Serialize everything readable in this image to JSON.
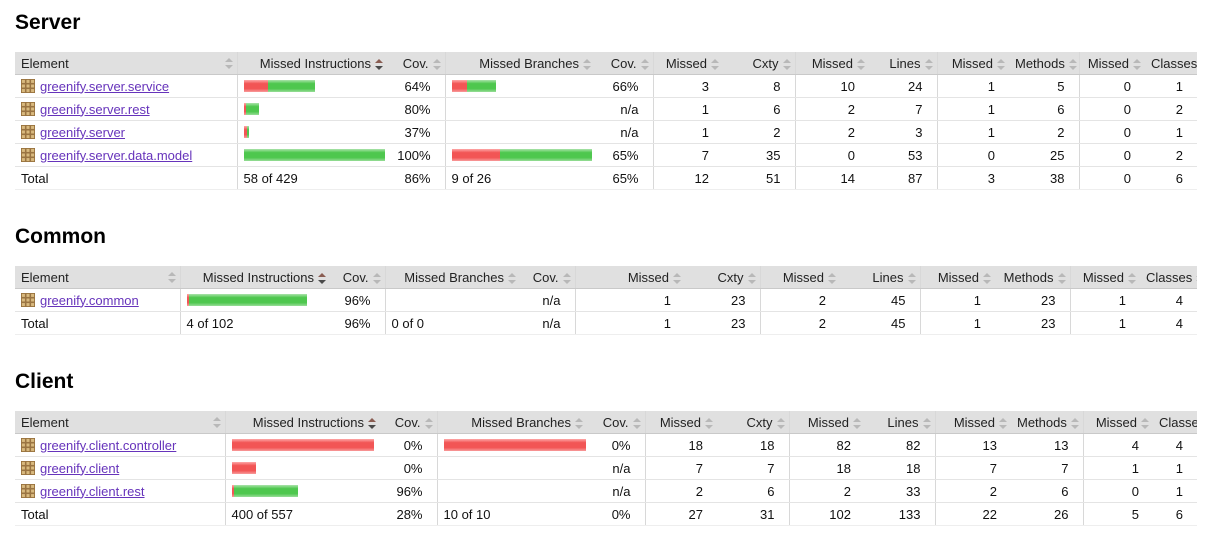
{
  "report": {
    "sort": {
      "column": "Missed Instructions",
      "direction": "desc"
    },
    "colors": {
      "bar_red": "#f25555",
      "bar_green": "#4ec74e",
      "link": "#6633bb",
      "header_bg": "#e0e0e0"
    },
    "icons": {
      "package": "package-grid-icon",
      "sort": "sort-arrows-icon"
    }
  },
  "columns": [
    "Element",
    "Missed Instructions",
    "Cov.",
    "Missed Branches",
    "Cov.",
    "Missed",
    "Cxty",
    "Missed",
    "Lines",
    "Missed",
    "Methods",
    "Missed",
    "Classes"
  ],
  "sections": [
    {
      "title": "Server",
      "rows": [
        {
          "name": "greenify.server.service",
          "instr_bar": {
            "red": 24,
            "green": 47
          },
          "instr_cov": "64%",
          "branch_bar": {
            "red": 15,
            "green": 29
          },
          "branch_cov": "66%",
          "counters": [
            "3",
            "8",
            "10",
            "24",
            "1",
            "5",
            "0",
            "1"
          ]
        },
        {
          "name": "greenify.server.rest",
          "instr_bar": {
            "red": 2,
            "green": 13
          },
          "instr_cov": "80%",
          "branch_bar": null,
          "branch_cov": "n/a",
          "counters": [
            "1",
            "6",
            "2",
            "7",
            "1",
            "6",
            "0",
            "2"
          ]
        },
        {
          "name": "greenify.server",
          "instr_bar": {
            "red": 3,
            "green": 2
          },
          "instr_cov": "37%",
          "branch_bar": null,
          "branch_cov": "n/a",
          "counters": [
            "1",
            "2",
            "2",
            "3",
            "1",
            "2",
            "0",
            "1"
          ]
        },
        {
          "name": "greenify.server.data.model",
          "instr_bar": {
            "red": 0,
            "green": 141
          },
          "instr_cov": "100%",
          "branch_bar": {
            "red": 48,
            "green": 92
          },
          "branch_cov": "65%",
          "counters": [
            "7",
            "35",
            "0",
            "53",
            "0",
            "25",
            "0",
            "2"
          ]
        }
      ],
      "total": {
        "label": "Total",
        "instr_text": "58 of 429",
        "instr_cov": "86%",
        "branch_text": "9 of 26",
        "branch_cov": "65%",
        "counters": [
          "12",
          "51",
          "14",
          "87",
          "3",
          "38",
          "0",
          "6"
        ]
      }
    },
    {
      "title": "Common",
      "rows": [
        {
          "name": "greenify.common",
          "instr_bar": {
            "red": 2,
            "green": 118
          },
          "instr_cov": "96%",
          "branch_bar": null,
          "branch_cov": "n/a",
          "counters": [
            "1",
            "23",
            "2",
            "45",
            "1",
            "23",
            "1",
            "4"
          ]
        }
      ],
      "total": {
        "label": "Total",
        "instr_text": "4 of 102",
        "instr_cov": "96%",
        "branch_text": "0 of 0",
        "branch_cov": "n/a",
        "counters": [
          "1",
          "23",
          "2",
          "45",
          "1",
          "23",
          "1",
          "4"
        ]
      }
    },
    {
      "title": "Client",
      "rows": [
        {
          "name": "greenify.client.controller",
          "instr_bar": {
            "red": 142,
            "green": 0
          },
          "instr_cov": "0%",
          "branch_bar": {
            "red": 142,
            "green": 0
          },
          "branch_cov": "0%",
          "counters": [
            "18",
            "18",
            "82",
            "82",
            "13",
            "13",
            "4",
            "4"
          ]
        },
        {
          "name": "greenify.client",
          "instr_bar": {
            "red": 24,
            "green": 0
          },
          "instr_cov": "0%",
          "branch_bar": null,
          "branch_cov": "n/a",
          "counters": [
            "7",
            "7",
            "18",
            "18",
            "7",
            "7",
            "1",
            "1"
          ]
        },
        {
          "name": "greenify.client.rest",
          "instr_bar": {
            "red": 2,
            "green": 64
          },
          "instr_cov": "96%",
          "branch_bar": null,
          "branch_cov": "n/a",
          "counters": [
            "2",
            "6",
            "2",
            "33",
            "2",
            "6",
            "0",
            "1"
          ]
        }
      ],
      "total": {
        "label": "Total",
        "instr_text": "400 of 557",
        "instr_cov": "28%",
        "branch_text": "10 of 10",
        "branch_cov": "0%",
        "counters": [
          "27",
          "31",
          "102",
          "133",
          "22",
          "26",
          "5",
          "6"
        ]
      }
    }
  ]
}
